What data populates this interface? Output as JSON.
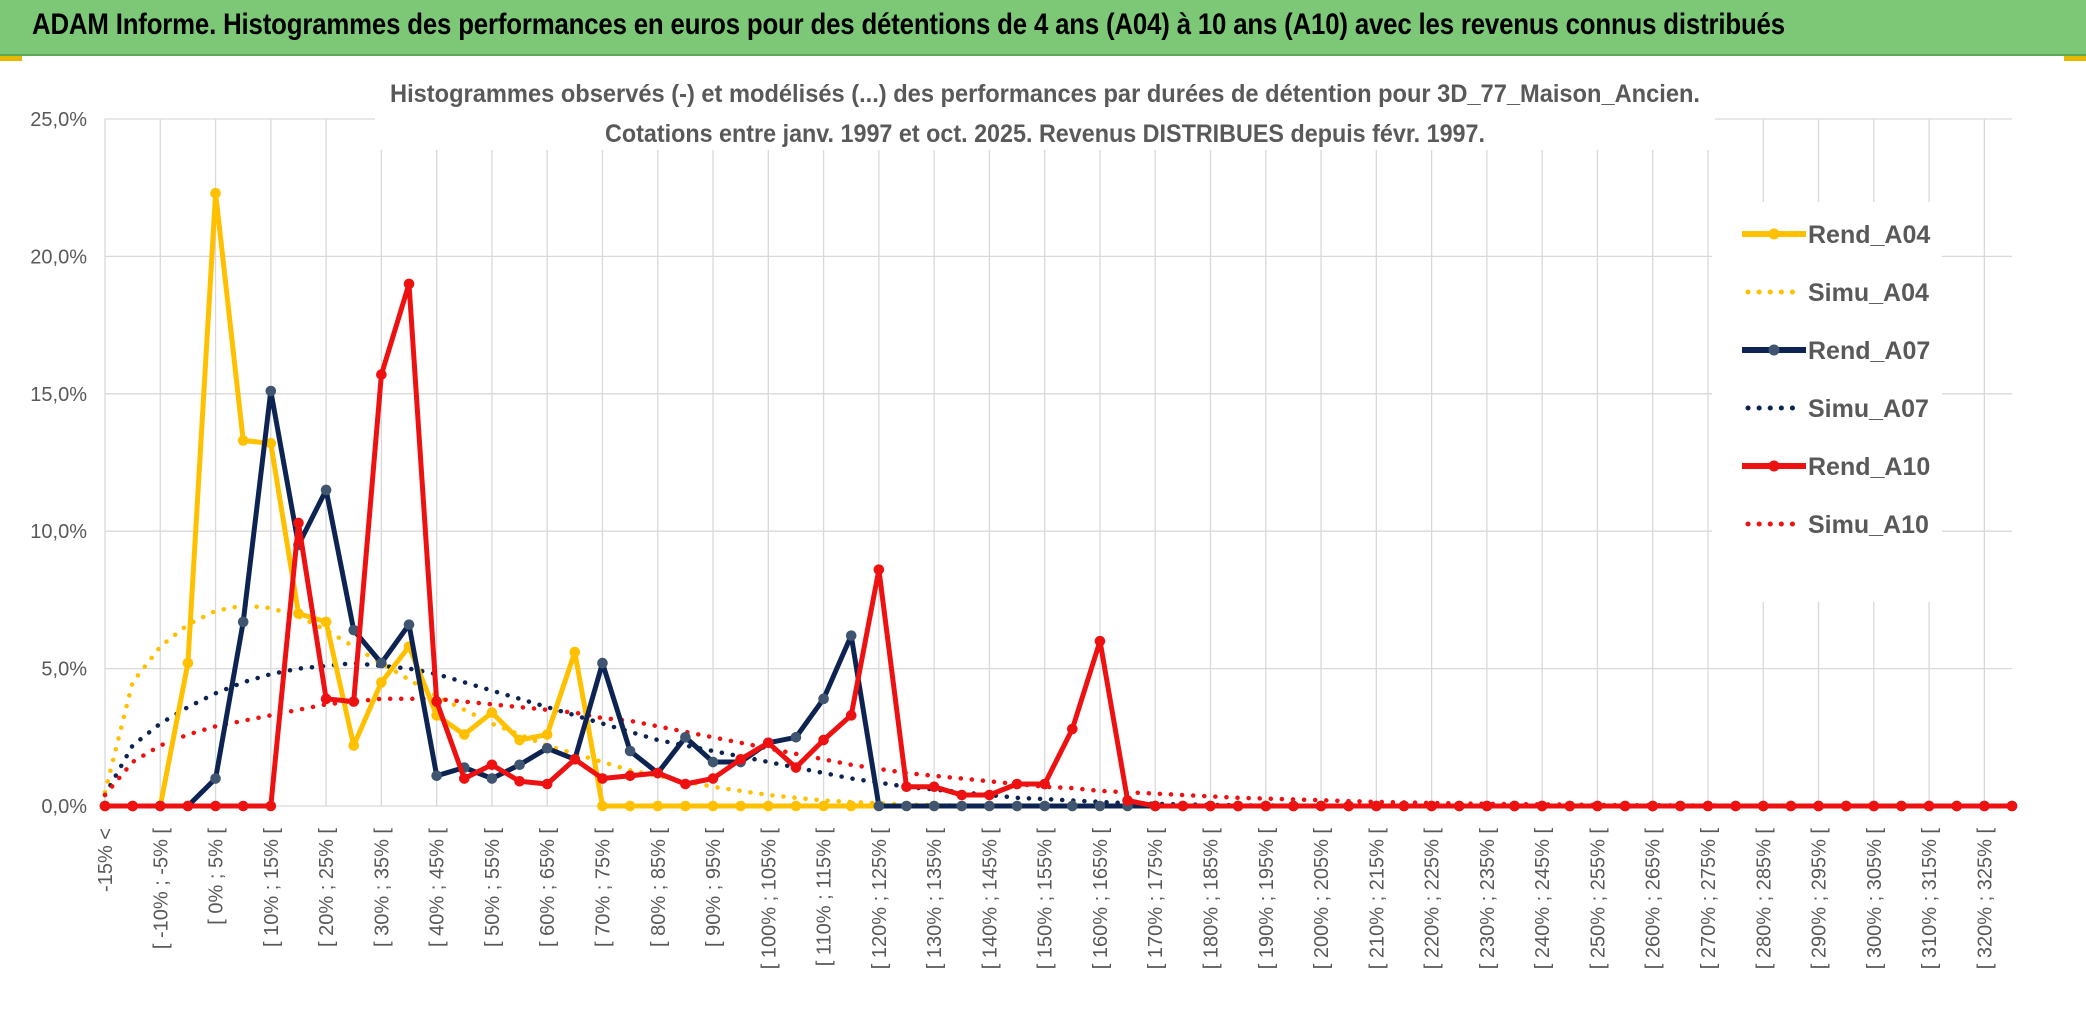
{
  "banner": {
    "title": "ADAM Informe. Histogrammes des performances en euros pour des détentions de 4 ans (A04) à 10 ans (A10) avec les revenus connus distribués"
  },
  "chart_data": {
    "type": "line",
    "title_lines": [
      "Histogrammes observés (-) et modélisés (...) des performances par durées de détention pour 3D_77_Maison_Ancien.",
      "Cotations entre janv. 1997 et oct. 2025. Revenus DISTRIBUES depuis févr. 1997."
    ],
    "ylim": [
      0,
      25
    ],
    "yticks": [
      "0,0%",
      "5,0%",
      "10,0%",
      "15,0%",
      "20,0%",
      "25,0%"
    ],
    "ytick_values": [
      0,
      5,
      10,
      15,
      20,
      25
    ],
    "xlabels": [
      "-15% <",
      "[ -10% ; -5% [",
      "[ 0% ; 5% [",
      "[ 10% ; 15% [",
      "[ 20% ; 25% [",
      "[ 30% ; 35% [",
      "[ 40% ; 45% [",
      "[ 50% ; 55% [",
      "[ 60% ; 65% [",
      "[ 70% ; 75% [",
      "[ 80% ; 85% [",
      "[ 90% ; 95% [",
      "[ 100% ; 105% [",
      "[ 110% ; 115% [",
      "[ 120% ; 125% [",
      "[ 130% ; 135% [",
      "[ 140% ; 145% [",
      "[ 150% ; 155% [",
      "[ 160% ; 165% [",
      "[ 170% ; 175% [",
      "[ 180% ; 185% [",
      "[ 190% ; 195% [",
      "[ 200% ; 205% [",
      "[ 210% ; 215% [",
      "[ 220% ; 225% [",
      "[ 230% ; 235% [",
      "[ 240% ; 245% [",
      "[ 250% ; 255% [",
      "[ 260% ; 265% [",
      "[ 270% ; 275% [",
      "[ 280% ; 285% [",
      "[ 290% ; 295% [",
      "[ 300% ; 305% [",
      "[ 310% ; 315% [",
      "[ 320% ; 325% ["
    ],
    "n_categories": 70,
    "grid": true,
    "legend_position": "right",
    "series": [
      {
        "name": "Rend_A04",
        "style": "solid",
        "color": "#ffc000",
        "values": [
          0,
          0,
          0,
          5.2,
          22.3,
          13.3,
          13.2,
          7,
          6.7,
          2.2,
          4.5,
          5.8,
          3.3,
          2.6,
          3.4,
          2.4,
          2.6,
          5.6,
          0,
          0,
          0,
          0,
          0,
          0,
          0,
          0,
          0,
          0,
          0,
          0,
          0,
          0,
          0,
          0,
          0,
          0,
          0,
          0,
          0,
          0,
          0,
          0,
          0,
          0,
          0,
          0,
          0,
          0,
          0,
          0,
          0,
          0,
          0,
          0,
          0,
          0,
          0,
          0,
          0,
          0,
          0,
          0,
          0,
          0,
          0,
          0,
          0,
          0,
          0,
          0
        ]
      },
      {
        "name": "Simu_A04",
        "style": "dotted",
        "color": "#ffc000",
        "values": [
          0.5,
          4.5,
          5.8,
          6.6,
          7.1,
          7.3,
          7.2,
          6.9,
          6.4,
          5.8,
          5.2,
          4.6,
          4,
          3.5,
          3,
          2.6,
          2.2,
          1.9,
          1.6,
          1.3,
          1.1,
          0.9,
          0.7,
          0.55,
          0.4,
          0.3,
          0.2,
          0.15,
          0.1,
          0.05,
          0.03,
          0.02,
          0.01,
          0,
          0,
          0,
          0,
          0,
          0,
          0,
          0,
          0,
          0,
          0,
          0,
          0,
          0,
          0,
          0,
          0,
          0,
          0,
          0,
          0,
          0,
          0,
          0,
          0,
          0,
          0,
          0,
          0,
          0,
          0,
          0,
          0,
          0,
          0,
          0,
          0
        ]
      },
      {
        "name": "Rend_A07",
        "style": "solid",
        "color": "#0d2452",
        "values": [
          0,
          0,
          0,
          0,
          1,
          6.7,
          15.1,
          9.5,
          11.5,
          6.4,
          5.2,
          6.6,
          1.1,
          1.4,
          1,
          1.5,
          2.1,
          1.7,
          5.2,
          2,
          1.2,
          2.5,
          1.6,
          1.6,
          2.3,
          2.5,
          3.9,
          6.2,
          0,
          0,
          0,
          0,
          0,
          0,
          0,
          0,
          0,
          0,
          0,
          0,
          0,
          0,
          0,
          0,
          0,
          0,
          0,
          0,
          0,
          0,
          0,
          0,
          0,
          0,
          0,
          0,
          0,
          0,
          0,
          0,
          0,
          0,
          0,
          0,
          0,
          0,
          0,
          0,
          0,
          0
        ]
      },
      {
        "name": "Simu_A07",
        "style": "dotted",
        "color": "#0d2452",
        "values": [
          0.4,
          2.2,
          3,
          3.6,
          4.1,
          4.5,
          4.8,
          5,
          5.1,
          5.2,
          5.1,
          5,
          4.8,
          4.5,
          4.2,
          3.9,
          3.6,
          3.3,
          3,
          2.7,
          2.4,
          2.2,
          2,
          1.8,
          1.6,
          1.4,
          1.2,
          1,
          0.85,
          0.7,
          0.6,
          0.5,
          0.4,
          0.3,
          0.25,
          0.2,
          0.15,
          0.1,
          0.08,
          0.06,
          0.04,
          0.03,
          0.02,
          0.01,
          0,
          0,
          0,
          0,
          0,
          0,
          0,
          0,
          0,
          0,
          0,
          0,
          0,
          0,
          0,
          0,
          0,
          0,
          0,
          0,
          0,
          0,
          0,
          0,
          0,
          0
        ]
      },
      {
        "name": "Rend_A10",
        "style": "solid",
        "color": "#ee1111",
        "values": [
          0,
          0,
          0,
          0,
          0,
          0,
          0,
          10.3,
          3.9,
          3.8,
          15.7,
          19,
          3.8,
          1,
          1.5,
          0.9,
          0.8,
          1.7,
          1,
          1.1,
          1.2,
          0.8,
          1,
          1.7,
          2.3,
          1.4,
          2.4,
          3.3,
          8.6,
          0.7,
          0.7,
          0.4,
          0.4,
          0.8,
          0.8,
          2.8,
          6,
          0.2,
          0,
          0,
          0,
          0,
          0,
          0,
          0,
          0,
          0,
          0,
          0,
          0,
          0,
          0,
          0,
          0,
          0,
          0,
          0,
          0,
          0,
          0,
          0,
          0,
          0,
          0,
          0,
          0,
          0,
          0,
          0,
          0
        ]
      },
      {
        "name": "Simu_A10",
        "style": "dotted",
        "color": "#ee1111",
        "values": [
          0.4,
          1.6,
          2.2,
          2.6,
          2.9,
          3.1,
          3.3,
          3.5,
          3.7,
          3.8,
          3.9,
          3.9,
          3.9,
          3.8,
          3.7,
          3.6,
          3.5,
          3.4,
          3.2,
          3.1,
          2.9,
          2.7,
          2.5,
          2.3,
          2.1,
          1.9,
          1.7,
          1.5,
          1.35,
          1.2,
          1.1,
          1,
          0.9,
          0.8,
          0.7,
          0.65,
          0.55,
          0.5,
          0.45,
          0.4,
          0.35,
          0.3,
          0.27,
          0.24,
          0.21,
          0.18,
          0.15,
          0.13,
          0.11,
          0.09,
          0.08,
          0.07,
          0.06,
          0.05,
          0.04,
          0.03,
          0.03,
          0.02,
          0.02,
          0.01,
          0.01,
          0,
          0,
          0,
          0,
          0,
          0,
          0,
          0,
          0
        ]
      }
    ]
  }
}
